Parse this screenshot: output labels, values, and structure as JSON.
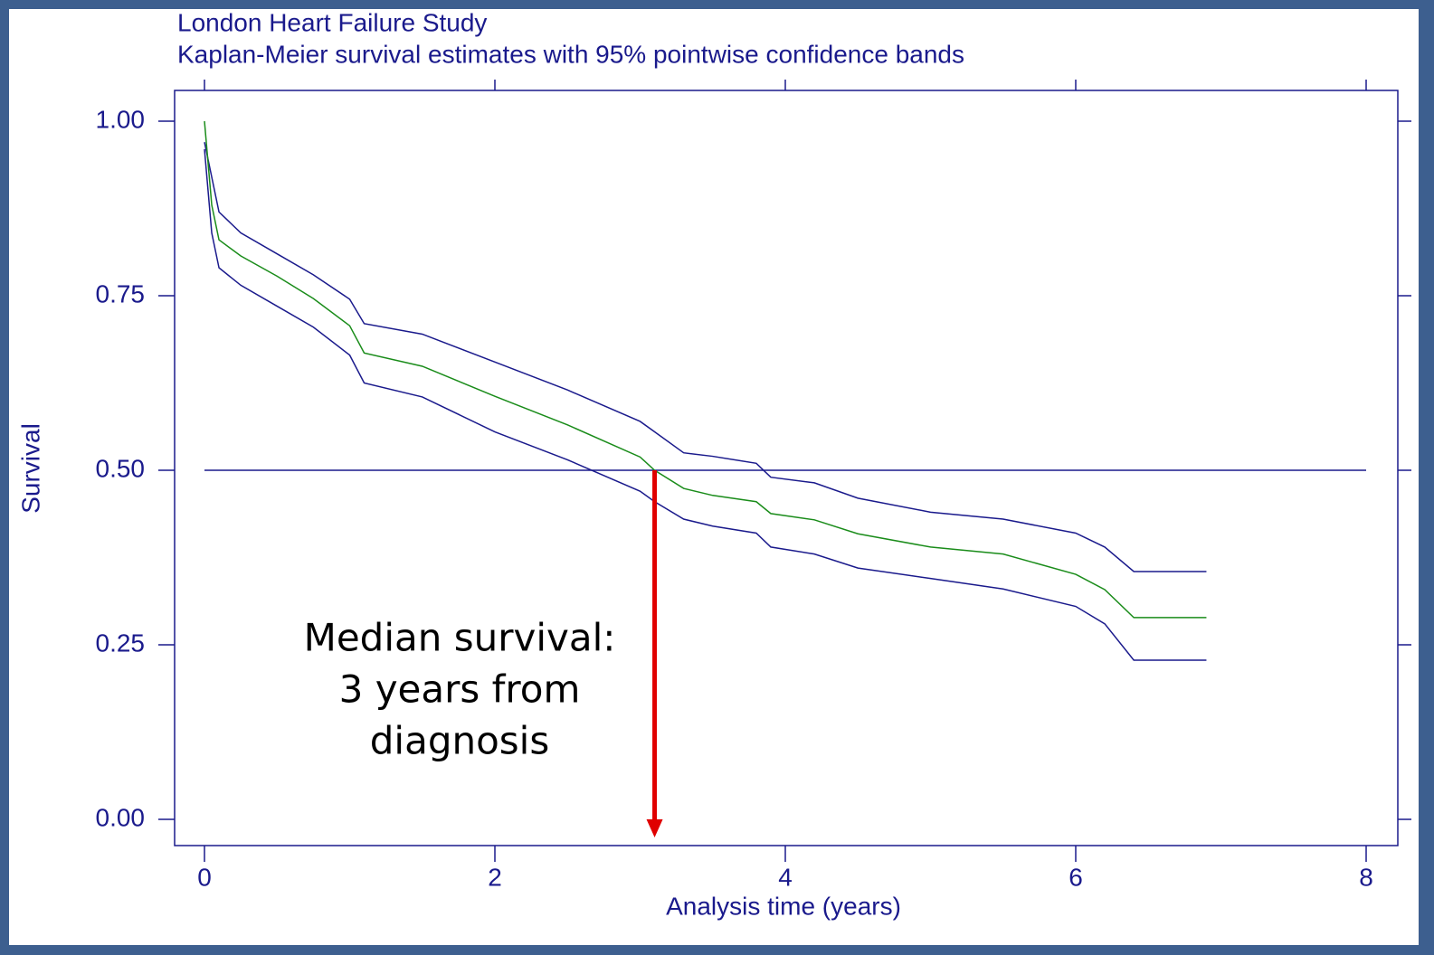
{
  "chart_data": {
    "type": "line",
    "title": "London Heart Failure Study",
    "subtitle": "Kaplan-Meier survival estimates with 95% pointwise confidence bands",
    "x_label": "Analysis time (years)",
    "y_label": "Survival",
    "x": [
      0,
      0.05,
      0.1,
      0.25,
      0.5,
      0.75,
      1.0,
      1.1,
      1.5,
      2.0,
      2.5,
      3.0,
      3.1,
      3.3,
      3.5,
      3.8,
      3.9,
      4.2,
      4.5,
      5.0,
      5.5,
      6.0,
      6.2,
      6.4,
      6.9
    ],
    "series": [
      {
        "color": "#1a1a8c",
        "values": [
          0.97,
          0.92,
          0.87,
          0.84,
          0.81,
          0.78,
          0.745,
          0.71,
          0.695,
          0.655,
          0.615,
          0.57,
          0.555,
          0.525,
          0.52,
          0.51,
          0.49,
          0.482,
          0.46,
          0.44,
          0.43,
          0.41,
          0.39,
          0.355,
          0.355
        ]
      },
      {
        "color": "#1a8c1a",
        "values": [
          1.0,
          0.88,
          0.83,
          0.807,
          0.778,
          0.746,
          0.707,
          0.668,
          0.649,
          0.606,
          0.565,
          0.519,
          0.5,
          0.474,
          0.464,
          0.455,
          0.438,
          0.429,
          0.409,
          0.39,
          0.38,
          0.351,
          0.329,
          0.289,
          0.289
        ]
      },
      {
        "color": "#1a1a8c",
        "values": [
          0.96,
          0.84,
          0.79,
          0.765,
          0.735,
          0.705,
          0.665,
          0.625,
          0.605,
          0.555,
          0.515,
          0.47,
          0.455,
          0.43,
          0.42,
          0.41,
          0.39,
          0.38,
          0.36,
          0.345,
          0.33,
          0.305,
          0.28,
          0.228,
          0.228
        ]
      }
    ],
    "xlim": [
      0,
      8
    ],
    "xticks": [
      0,
      2,
      4,
      6,
      8
    ],
    "ylim": [
      0,
      1
    ],
    "yticks": [
      {
        "value": 0,
        "label": "0.00"
      },
      {
        "value": 0.25,
        "label": "0.25"
      },
      {
        "value": 0.5,
        "label": "0.50"
      },
      {
        "value": 0.75,
        "label": "0.75"
      },
      {
        "value": 1,
        "label": "1.00"
      }
    ],
    "hline": {
      "value": 0.5,
      "color": "#1a1a8c"
    },
    "arrow": {
      "x": 3.1,
      "from": 0.5,
      "to": 0,
      "color": "#e00000"
    },
    "annotation": [
      "Median survival:",
      "3 years from",
      "diagnosis"
    ]
  }
}
